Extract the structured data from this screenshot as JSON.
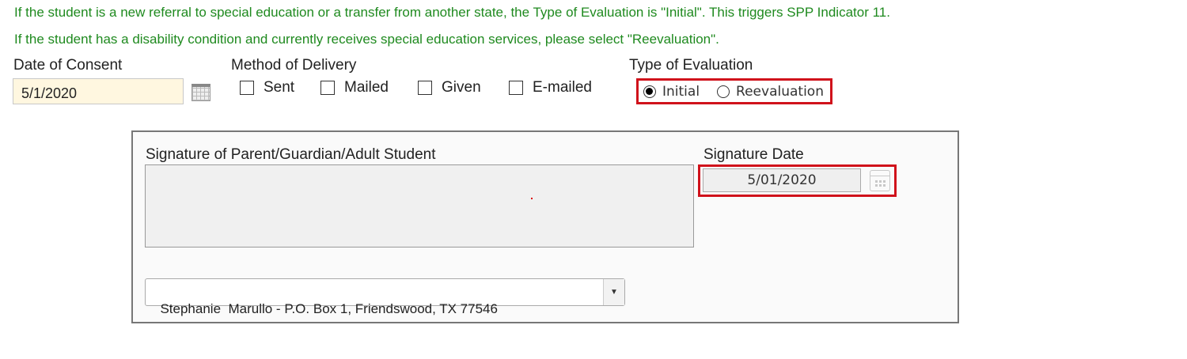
{
  "notes": [
    "If the student is a new referral to special education or a transfer from another state, the Type of Evaluation is \"Initial\". This triggers SPP Indicator 11.",
    "If the student has a disability condition and currently receives special education services, please select \"Reevaluation\"."
  ],
  "consent": {
    "label": "Date of Consent",
    "value": "5/1/2020",
    "icon": "calendar-icon"
  },
  "delivery": {
    "label": "Method of Delivery",
    "options": [
      {
        "label": "Sent",
        "checked": false
      },
      {
        "label": "Mailed",
        "checked": false
      },
      {
        "label": "Given",
        "checked": false
      },
      {
        "label": "E-mailed",
        "checked": false
      }
    ]
  },
  "evaluation": {
    "label": "Type of Evaluation",
    "options": [
      {
        "label": "Initial",
        "selected": true
      },
      {
        "label": "Reevaluation",
        "selected": false
      }
    ],
    "highlight_color": "#d0121b"
  },
  "signature": {
    "label": "Signature of Parent/Guardian/Adult Student",
    "date_label": "Signature Date",
    "date_value": "5/01/2020",
    "parent_select": "Stephanie  Marullo - P.O. Box 1, Friendswood, TX 77546"
  },
  "colors": {
    "note_text": "#1f8a1f",
    "consent_bg": "#fff7e0"
  }
}
